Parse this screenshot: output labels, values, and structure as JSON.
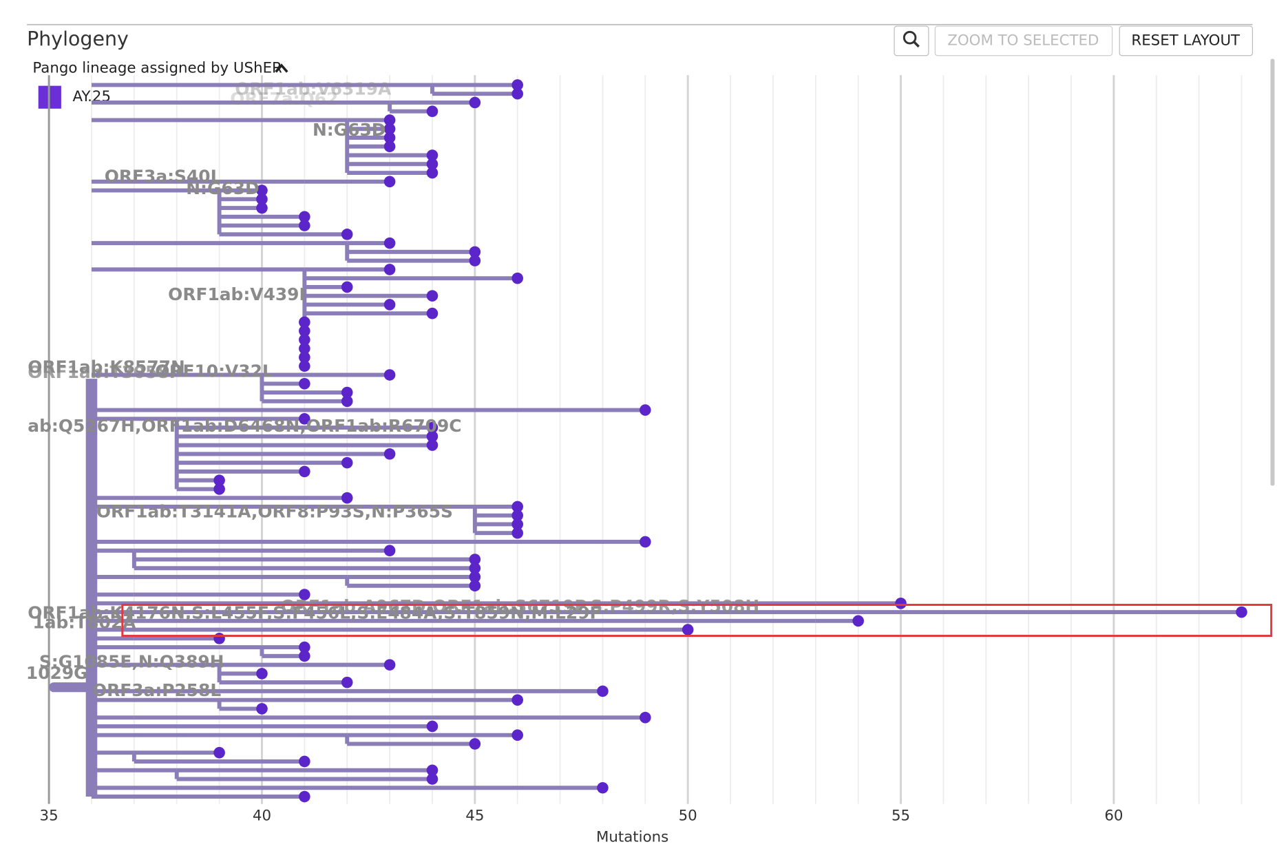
{
  "header": {
    "title": "Phylogeny",
    "buttons": [
      "ZOOM TO SELECTED",
      "RESET LAYOUT"
    ]
  },
  "legend": {
    "title": "Pango lineage assigned by UShER",
    "items": [
      {
        "name": "AY.25",
        "color": "#6a2fd6"
      }
    ]
  },
  "chart_data": {
    "type": "tree",
    "xlabel": "Mutations",
    "xlim": [
      35,
      63.2
    ],
    "xticks": [
      35,
      40,
      45,
      50,
      55,
      60
    ],
    "minor_grid": true,
    "branch_color": "#8b7db8",
    "tip_color": "#5b25c9",
    "from": [
      44,
      44,
      43,
      43,
      42,
      42,
      42,
      42,
      42,
      42,
      42,
      41,
      39,
      39,
      39,
      39,
      39,
      39,
      42,
      42,
      42,
      41,
      41,
      41,
      41,
      41,
      41,
      41,
      41,
      41,
      41,
      41,
      41,
      40,
      40,
      40,
      40,
      44,
      38,
      38,
      38,
      38,
      38,
      38,
      38,
      38,
      38,
      37,
      45,
      45,
      45,
      45,
      43,
      37,
      37,
      37,
      42,
      42,
      37,
      53,
      51,
      53,
      47,
      37,
      40,
      40,
      39,
      39,
      39,
      46,
      39,
      39,
      37,
      36,
      42,
      42,
      37,
      37,
      38,
      38,
      36,
      36
    ],
    "values": [
      46,
      46,
      45,
      44,
      43,
      43,
      43,
      43,
      44,
      44,
      44,
      43,
      40,
      40,
      40,
      41,
      41,
      42,
      43,
      45,
      45,
      43,
      46,
      42,
      44,
      43,
      44,
      41,
      41,
      41,
      41,
      41,
      41,
      43,
      41,
      42,
      42,
      49,
      41,
      44,
      44,
      44,
      43,
      42,
      41,
      39,
      39,
      42,
      46,
      46,
      46,
      46,
      49,
      43,
      45,
      45,
      45,
      45,
      41,
      55,
      63,
      54,
      50,
      39,
      41,
      41,
      43,
      40,
      42,
      48,
      46,
      40,
      49,
      44,
      46,
      45,
      39,
      41,
      44,
      44,
      48,
      41
    ],
    "branch_labels": [
      "ORF1ab:V6319A",
      "ORF7a:Q62",
      "N:G63D",
      "ORF3a:S40L",
      "N:G63D",
      "ORF1ab:V439I",
      "ORF1ab:K8577N",
      "ORF1ab:T3058I",
      "ORF10:V32L",
      "ab:Q5267H,ORF1ab:D6468N,ORF1ab:R6709C",
      "ORF1ab:T3141A,ORF8:P93S,N:P365S",
      "ORF1ab:K4176N,S:L455F,S:F456L,S:E484A,S:T859N,M:L29F",
      "ORF1ab:A967D,ORF1ab:S6719P,S:P499R,S:Y508H",
      "1ab:T802A",
      "S:G1085E,N:Q389H",
      "1029G",
      "ORF3a:P258L"
    ]
  }
}
